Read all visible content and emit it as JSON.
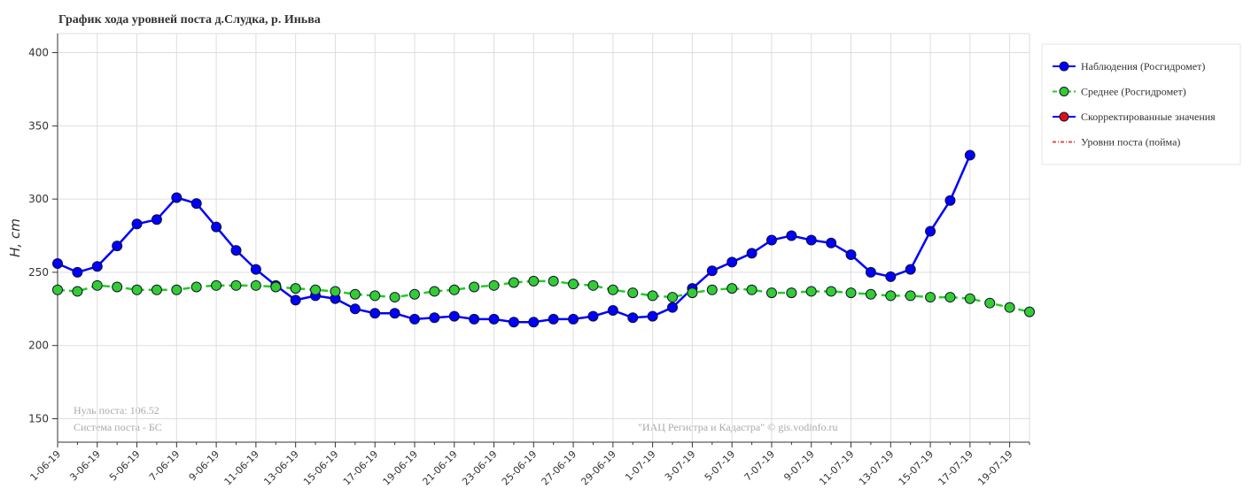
{
  "chart_data": {
    "type": "line",
    "title": "График хода уровней поста д.Слудка, р. Иньва",
    "y_label": "H, cm",
    "annotations": [
      "Нуль поста: 106.52",
      "Система поста - БС",
      "\"ИАЦ Регистра и Кадастра\" © gis.vodinfo.ru"
    ],
    "categories": [
      "1-06-19",
      null,
      "3-06-19",
      null,
      "5-06-19",
      null,
      "7-06-19",
      null,
      "9-06-19",
      null,
      "11-06-19",
      null,
      "13-06-19",
      null,
      "15-06-19",
      null,
      "17-06-19",
      null,
      "19-06-19",
      null,
      "21-06-19",
      null,
      "23-06-19",
      null,
      "25-06-19",
      null,
      "27-06-19",
      null,
      "29-06-19",
      null,
      "1-07-19",
      null,
      "3-07-19",
      null,
      "5-07-19",
      null,
      "7-07-19",
      null,
      "9-07-19",
      null,
      "11-07-19",
      null,
      "13-07-19",
      null,
      "15-07-19",
      null,
      "17-07-19",
      null,
      "19-07-19",
      null
    ],
    "series": [
      {
        "name": "Наблюдения (Росгидромет)",
        "color": "#0000ff",
        "marker": "#0000ff",
        "dash": false,
        "values": [
          256,
          250,
          254,
          268,
          283,
          286,
          301,
          297,
          281,
          265,
          252,
          241,
          231,
          234,
          232,
          225,
          222,
          222,
          218,
          219,
          220,
          218,
          218,
          216,
          216,
          218,
          218,
          220,
          224,
          219,
          220,
          226,
          239,
          251,
          257,
          263,
          272,
          275,
          272,
          270,
          262,
          250,
          247,
          252,
          278,
          299,
          330,
          null,
          null,
          null
        ]
      },
      {
        "name": "Среднее (Росгидромет)",
        "color": "#22cc22",
        "marker": "#33cc33",
        "dash": true,
        "values": [
          238,
          237,
          241,
          240,
          238,
          238,
          238,
          240,
          241,
          241,
          241,
          240,
          239,
          238,
          237,
          235,
          234,
          233,
          235,
          237,
          238,
          240,
          241,
          243,
          244,
          244,
          242,
          241,
          238,
          236,
          234,
          233,
          236,
          238,
          239,
          238,
          236,
          236,
          237,
          237,
          236,
          235,
          234,
          234,
          233,
          233,
          232,
          229,
          226,
          223
        ]
      },
      {
        "name": "Скорректированные значения",
        "color": "#0000ff",
        "marker": "#dd1111",
        "dash": false,
        "values": [
          null,
          null,
          null,
          null,
          null,
          null,
          null,
          null,
          null,
          null,
          null,
          null,
          null,
          null,
          null,
          null,
          null,
          null,
          null,
          null,
          null,
          null,
          null,
          null,
          null,
          null,
          null,
          null,
          null,
          null,
          null,
          null,
          null,
          null,
          null,
          null,
          null,
          null,
          null,
          null,
          null,
          null,
          null,
          null,
          null,
          null,
          null,
          null,
          null,
          null
        ]
      },
      {
        "name": "Уровни поста (пойма)",
        "color": "#e05050",
        "marker": null,
        "dash": "dashdot",
        "values": [
          null,
          null,
          null,
          null,
          null,
          null,
          null,
          null,
          null,
          null,
          null,
          null,
          null,
          null,
          null,
          null,
          null,
          null,
          null,
          null,
          null,
          null,
          null,
          null,
          null,
          null,
          null,
          null,
          null,
          null,
          null,
          null,
          null,
          null,
          null,
          null,
          null,
          null,
          null,
          null,
          null,
          null,
          null,
          null,
          null,
          null,
          null,
          null,
          null,
          null
        ]
      }
    ],
    "ylim": [
      134,
      413
    ],
    "yticks": [
      150,
      200,
      250,
      300,
      350,
      400
    ],
    "grid": true
  }
}
